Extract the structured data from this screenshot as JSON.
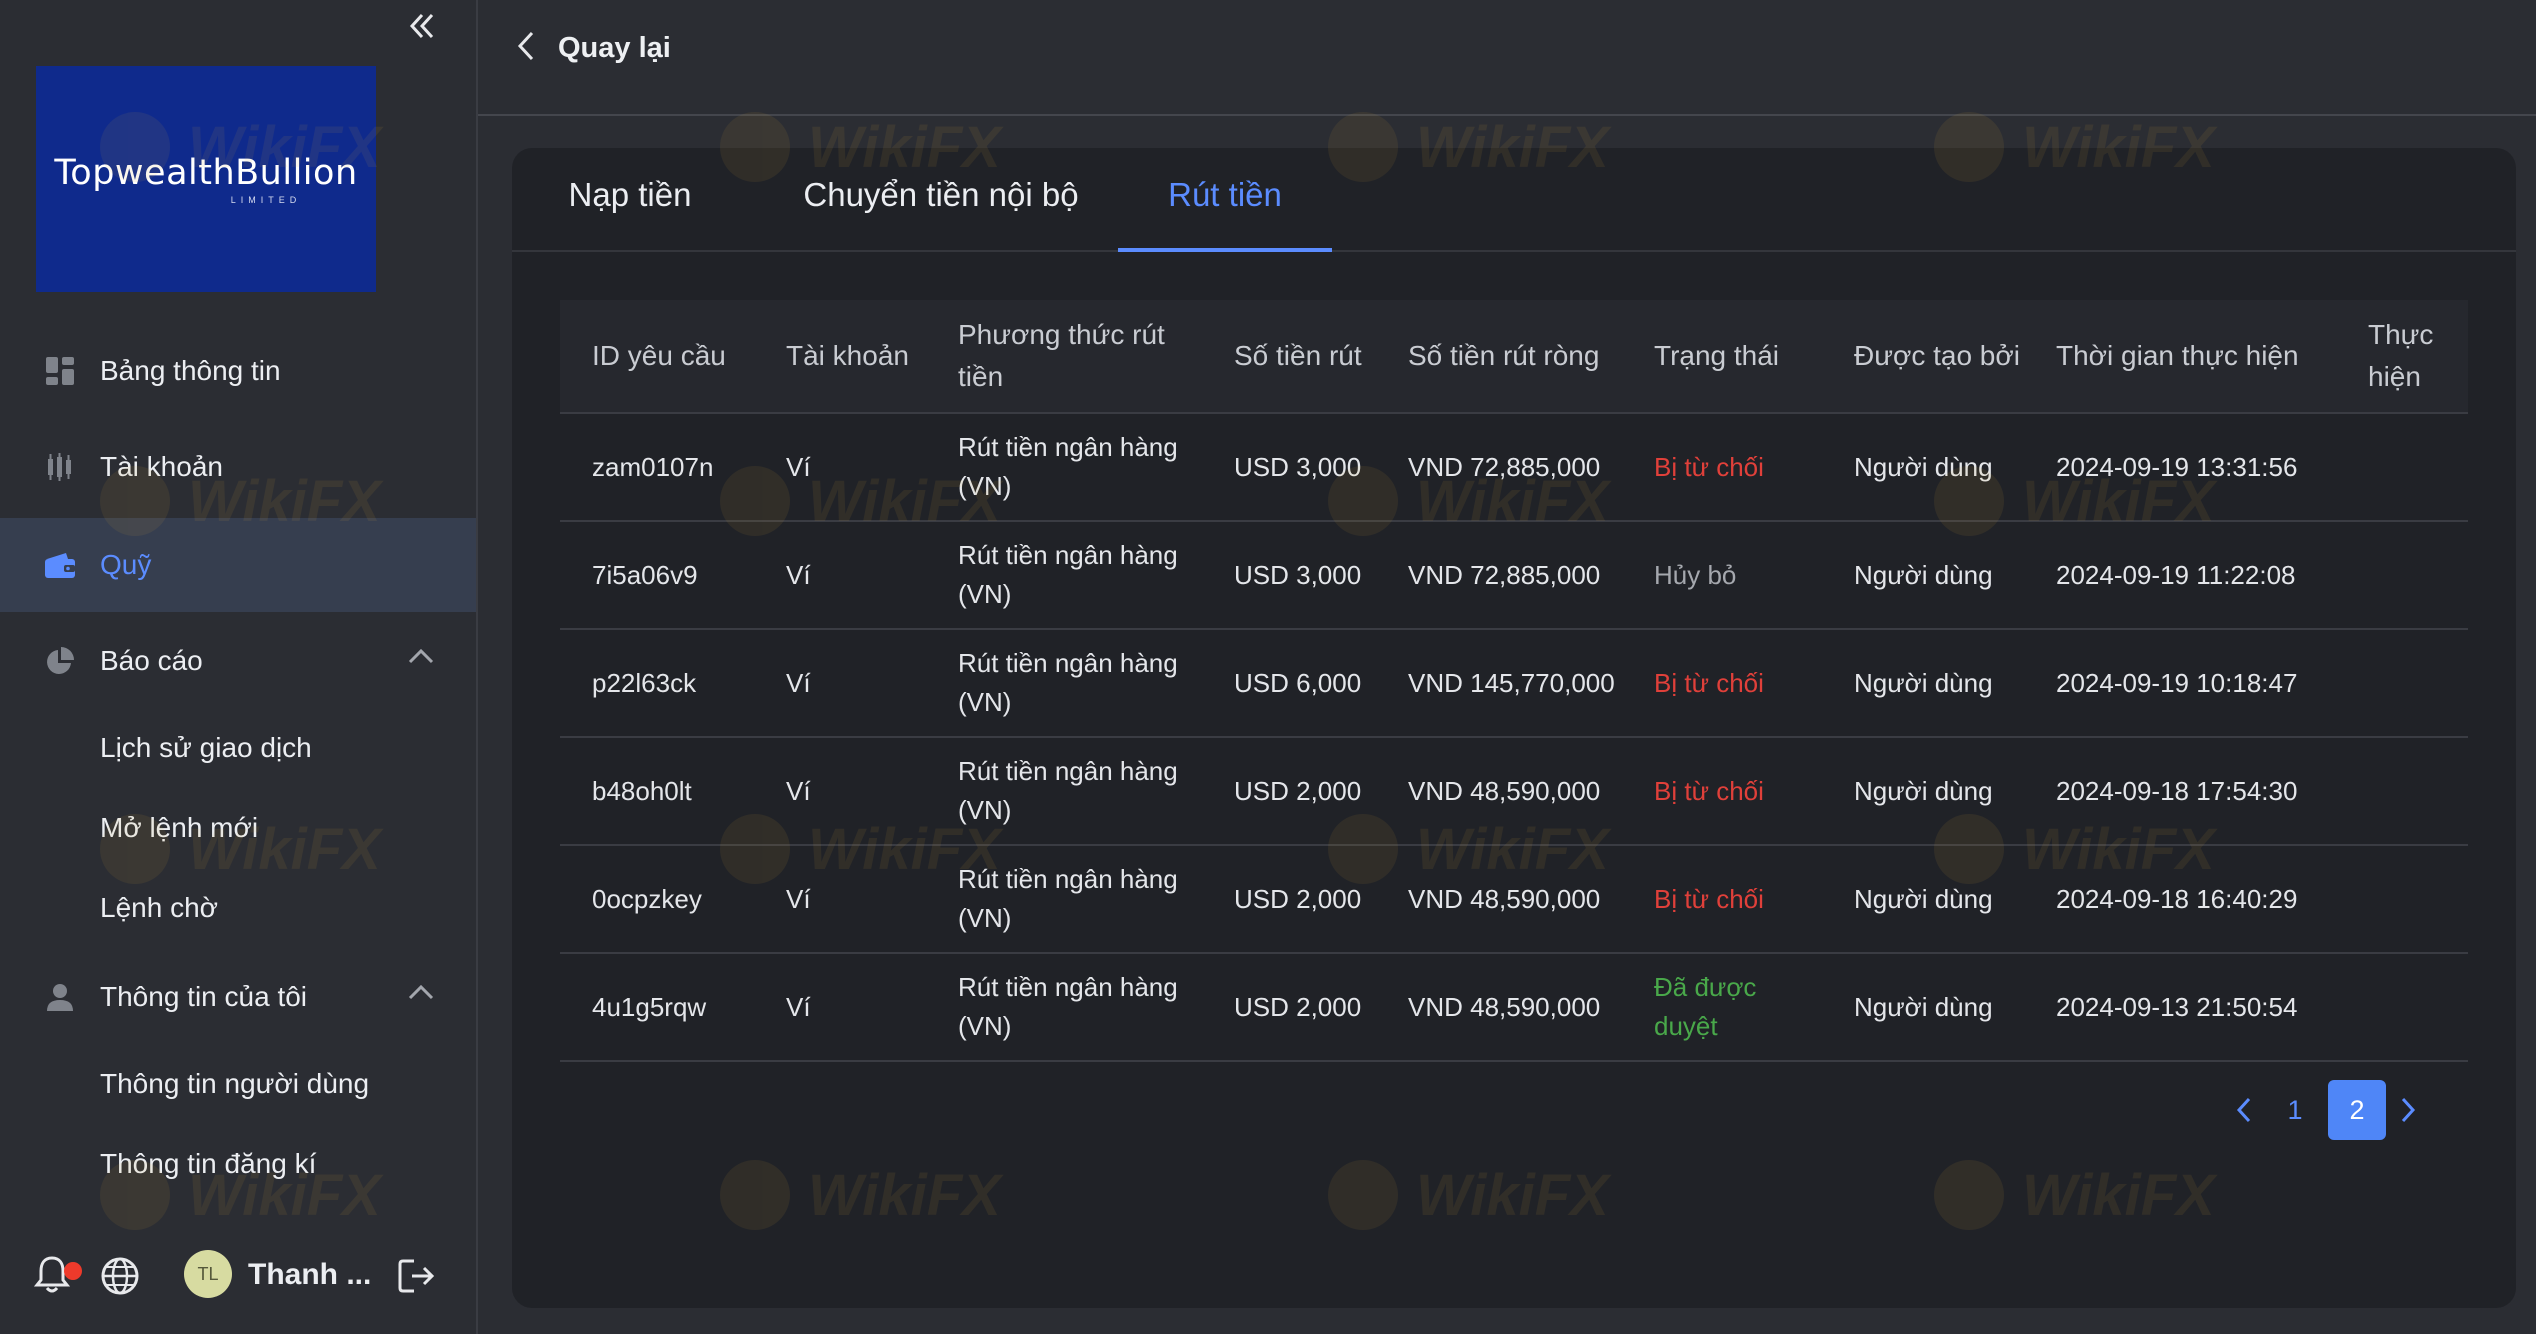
{
  "sidebar": {
    "logo": {
      "text": "TopwealthBullion",
      "sub": "LIMITED"
    },
    "nav": {
      "dashboard": "Bảng thông tin",
      "account": "Tài khoản",
      "funds": "Quỹ",
      "reports": "Báo cáo",
      "history": "Lịch sử giao dịch",
      "new_order": "Mở lệnh mới",
      "pending": "Lệnh chờ",
      "my_info": "Thông tin của tôi",
      "user_info": "Thông tin người dùng",
      "reg_info": "Thông tin đăng kí"
    },
    "user": {
      "initials": "TL",
      "name": "Thanh ..."
    },
    "icons": {
      "collapse": "double-chevron-left-icon",
      "dashboard": "grid-icon",
      "account": "candlestick-icon",
      "funds": "wallet-icon",
      "reports": "pie-chart-icon",
      "my_info": "user-icon",
      "bell": "bell-icon",
      "globe": "globe-icon",
      "logout": "logout-icon"
    }
  },
  "header": {
    "back_label": "Quay lại"
  },
  "tabs": [
    "Nạp tiền",
    "Chuyển tiền nội bộ",
    "Rút tiền"
  ],
  "table": {
    "headers": [
      "ID yêu cầu",
      "Tài khoản",
      "Phương thức rút tiền",
      "Số tiền rút",
      "Số tiền rút ròng",
      "Trạng thái",
      "Được tạo bởi",
      "Thời gian thực hiện",
      "Thực hiện"
    ],
    "rows": [
      {
        "id": "zam0107n",
        "account": "Ví",
        "method": "Rút tiền ngân hàng (VN)",
        "amount": "USD 3,000",
        "net": "VND 72,885,000",
        "status": "Bị từ chối",
        "status_type": "rejected",
        "by": "Người dùng",
        "time": "2024-09-19 13:31:56",
        "action": ""
      },
      {
        "id": "7i5a06v9",
        "account": "Ví",
        "method": "Rút tiền ngân hàng (VN)",
        "amount": "USD 3,000",
        "net": "VND 72,885,000",
        "status": "Hủy bỏ",
        "status_type": "cancel",
        "by": "Người dùng",
        "time": "2024-09-19 11:22:08",
        "action": ""
      },
      {
        "id": "p22l63ck",
        "account": "Ví",
        "method": "Rút tiền ngân hàng (VN)",
        "amount": "USD 6,000",
        "net": "VND 145,770,000",
        "status": "Bị từ chối",
        "status_type": "rejected",
        "by": "Người dùng",
        "time": "2024-09-19 10:18:47",
        "action": ""
      },
      {
        "id": "b48oh0lt",
        "account": "Ví",
        "method": "Rút tiền ngân hàng (VN)",
        "amount": "USD 2,000",
        "net": "VND 48,590,000",
        "status": "Bị từ chối",
        "status_type": "rejected",
        "by": "Người dùng",
        "time": "2024-09-18 17:54:30",
        "action": ""
      },
      {
        "id": "0ocpzkey",
        "account": "Ví",
        "method": "Rút tiền ngân hàng (VN)",
        "amount": "USD 2,000",
        "net": "VND 48,590,000",
        "status": "Bị từ chối",
        "status_type": "rejected",
        "by": "Người dùng",
        "time": "2024-09-18 16:40:29",
        "action": ""
      },
      {
        "id": "4u1g5rqw",
        "account": "Ví",
        "method": "Rút tiền ngân hàng (VN)",
        "amount": "USD 2,000",
        "net": "VND 48,590,000",
        "status": "Đã được duyệt",
        "status_type": "approved",
        "by": "Người dùng",
        "time": "2024-09-13 21:50:54",
        "action": ""
      }
    ]
  },
  "pagination": {
    "pages": [
      "1",
      "2"
    ],
    "current": "2"
  },
  "colors": {
    "accent": "#5b8cff",
    "rejected": "#e0403a",
    "approved": "#49a84a",
    "brand_bg": "#0f2a8c"
  },
  "watermark": "WikiFX"
}
